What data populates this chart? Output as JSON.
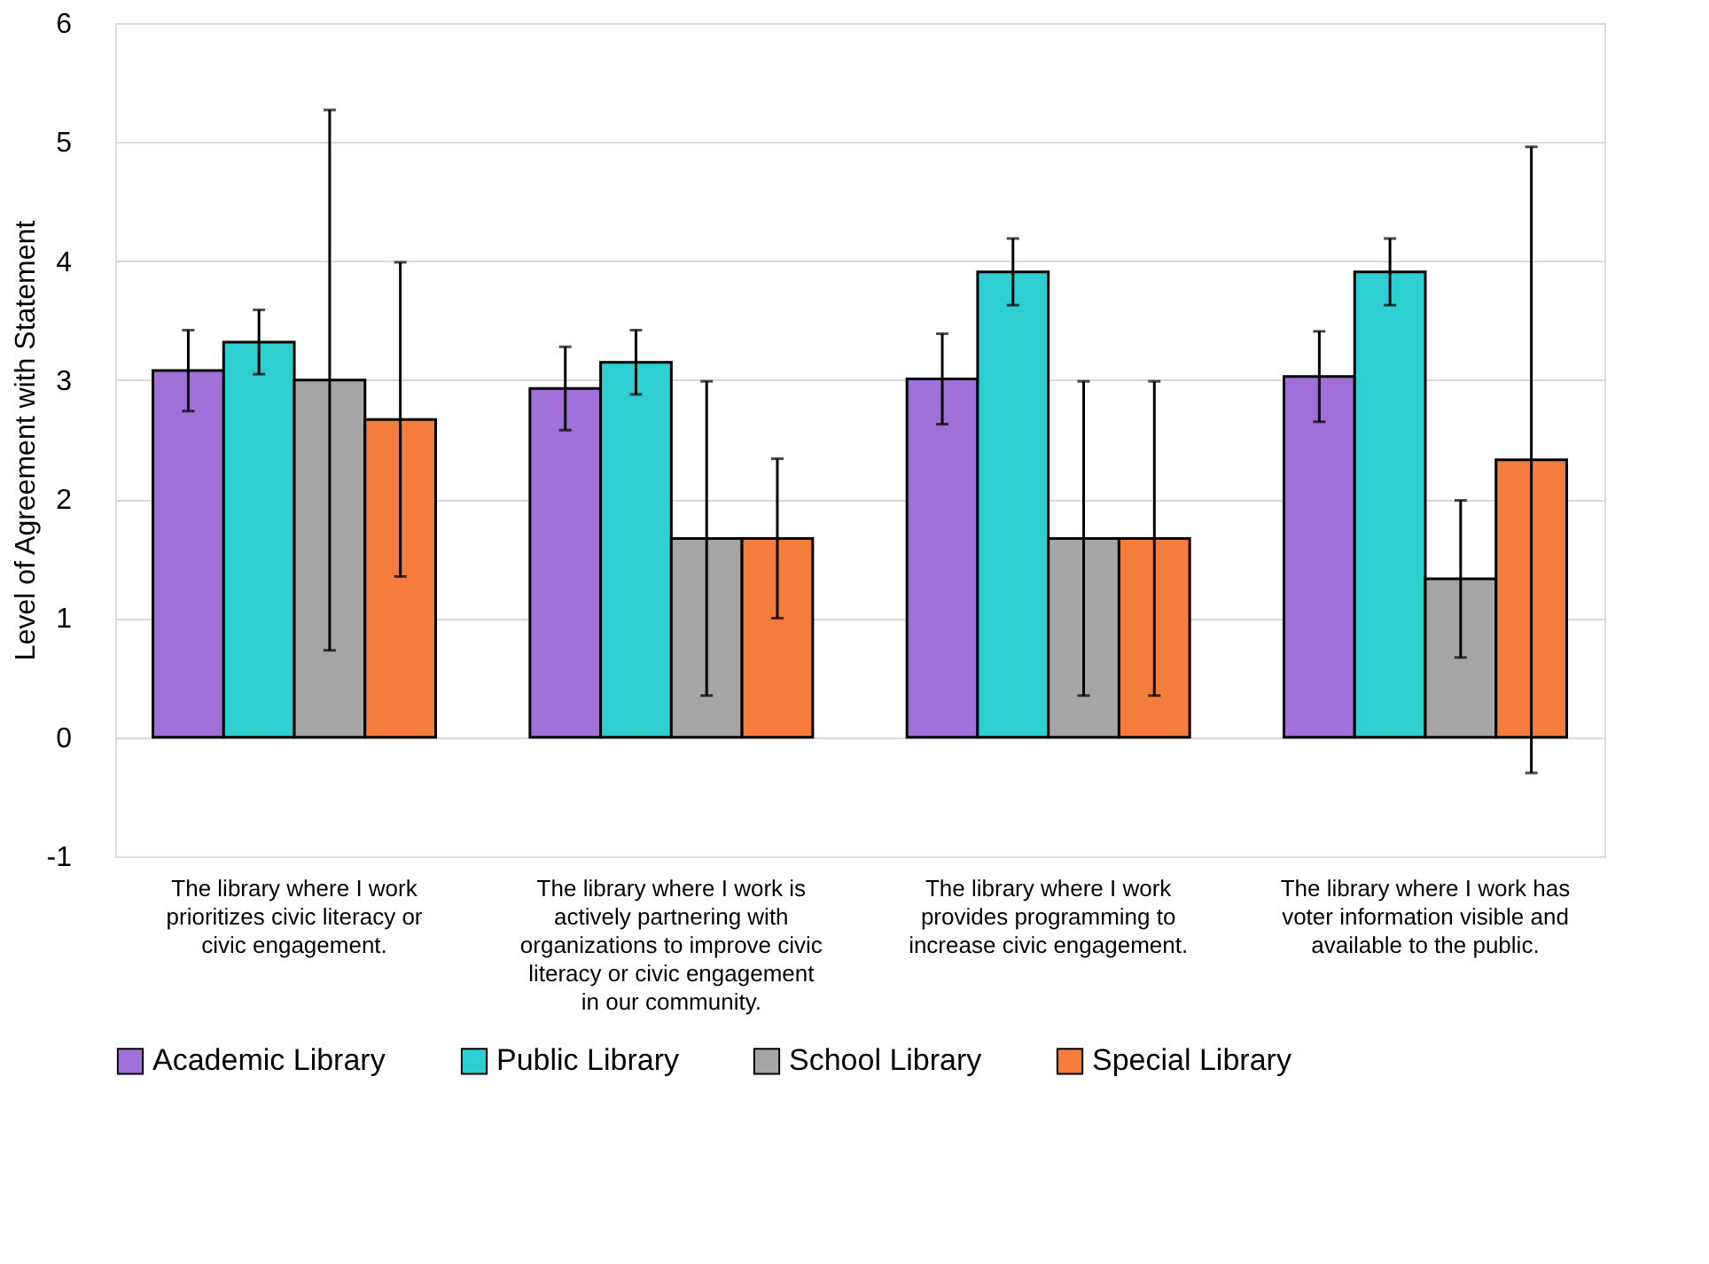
{
  "chart_data": {
    "type": "bar",
    "ylabel": "Level of Agreement with Statement",
    "categories": [
      "The library where I work prioritizes civic literacy or civic engagement.",
      "The library where I work is actively partnering with organizations to improve civic literacy or civic engagement in our community.",
      "The library where I work provides programming to increase civic engagement.",
      "The library where I work has voter information visible and available to the public."
    ],
    "series": [
      {
        "name": "Academic Library",
        "color": "#a070d8",
        "values": [
          3.08,
          2.93,
          3.01,
          3.03
        ],
        "errors": [
          0.34,
          0.35,
          0.38,
          0.38
        ]
      },
      {
        "name": "Public Library",
        "color": "#2ecfd0",
        "values": [
          3.32,
          3.15,
          3.91,
          3.91
        ],
        "errors": [
          0.27,
          0.27,
          0.28,
          0.28
        ]
      },
      {
        "name": "School Library",
        "color": "#a6a6a6",
        "values": [
          3.0,
          1.67,
          1.67,
          1.33
        ],
        "errors": [
          2.27,
          1.32,
          1.32,
          0.66
        ]
      },
      {
        "name": "Special Library",
        "color": "#f47c3c",
        "values": [
          2.67,
          1.67,
          1.67,
          2.33
        ],
        "errors": [
          1.32,
          0.67,
          1.32,
          2.63
        ]
      }
    ],
    "ylim": [
      -1,
      6
    ],
    "yticks": [
      -1,
      0,
      1,
      2,
      3,
      4,
      5,
      6
    ],
    "grid": "y",
    "legend": "bottom"
  }
}
